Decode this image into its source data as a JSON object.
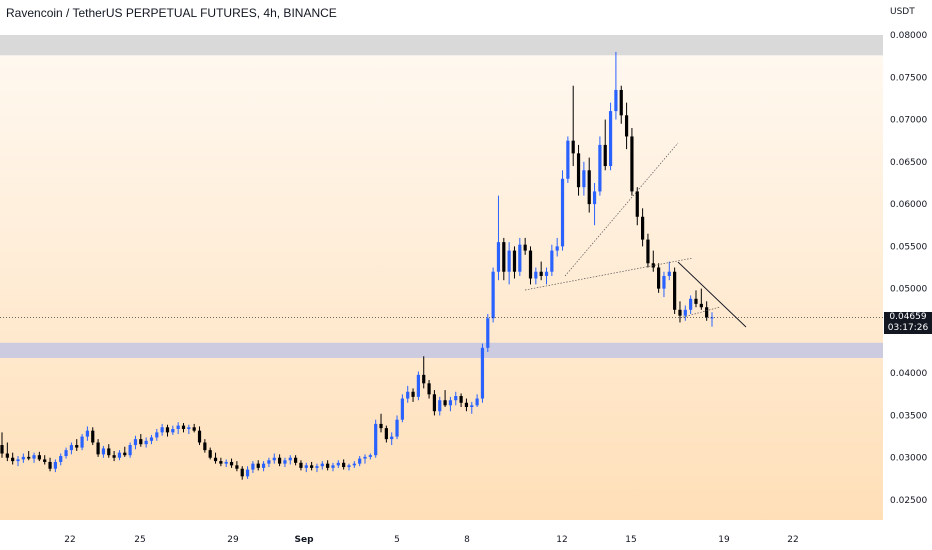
{
  "title": "Ravencoin / TetherUS PERPETUAL FUTURES, 4h, BINANCE",
  "currency": "USDT",
  "current_price": "0.04659",
  "countdown": "03:17:26",
  "colors": {
    "up": "#2962ff",
    "down": "#000000",
    "zone_top": "#d9d9d9",
    "zone_mid": "#cdcbe0",
    "grad_top": "#fff9f2",
    "grad_bottom": "#ffdfb8"
  },
  "chart_data": {
    "type": "candlestick",
    "title": "Ravencoin / TetherUS PERPETUAL FUTURES, 4h, BINANCE",
    "ylabel": "USDT",
    "ylim": [
      0.0218,
      0.0822
    ],
    "y_ticks": [
      "0.08000",
      "0.07500",
      "0.07000",
      "0.06500",
      "0.06000",
      "0.05500",
      "0.05000",
      "0.04500",
      "0.04000",
      "0.03500",
      "0.03000",
      "0.02500"
    ],
    "x_ticks": [
      "22",
      "25",
      "29",
      "Sep",
      "5",
      "8",
      "12",
      "15",
      "19",
      "22"
    ],
    "zones": [
      {
        "from": 0.0776,
        "to": 0.08
      },
      {
        "from": 0.0418,
        "to": 0.0436
      }
    ],
    "ohlc": [
      [
        0.0315,
        0.033,
        0.03,
        0.0305
      ],
      [
        0.0305,
        0.0318,
        0.0296,
        0.03
      ],
      [
        0.03,
        0.0306,
        0.0292,
        0.0296
      ],
      [
        0.0296,
        0.0302,
        0.029,
        0.0298
      ],
      [
        0.0298,
        0.0305,
        0.0294,
        0.0301
      ],
      [
        0.0301,
        0.0308,
        0.0297,
        0.0299
      ],
      [
        0.0299,
        0.0306,
        0.0294,
        0.0303
      ],
      [
        0.0303,
        0.0307,
        0.0296,
        0.0298
      ],
      [
        0.0298,
        0.0303,
        0.0292,
        0.0295
      ],
      [
        0.0295,
        0.03,
        0.0284,
        0.0287
      ],
      [
        0.0287,
        0.0298,
        0.0283,
        0.0295
      ],
      [
        0.0295,
        0.0305,
        0.0291,
        0.0302
      ],
      [
        0.0302,
        0.0312,
        0.0299,
        0.0309
      ],
      [
        0.0309,
        0.0318,
        0.0304,
        0.0315
      ],
      [
        0.0315,
        0.0322,
        0.0308,
        0.0312
      ],
      [
        0.0312,
        0.0328,
        0.0309,
        0.0325
      ],
      [
        0.0325,
        0.0337,
        0.032,
        0.0332
      ],
      [
        0.0332,
        0.0336,
        0.0315,
        0.0318
      ],
      [
        0.0318,
        0.0322,
        0.0301,
        0.0304
      ],
      [
        0.0304,
        0.0314,
        0.03,
        0.0311
      ],
      [
        0.0311,
        0.0316,
        0.03,
        0.0303
      ],
      [
        0.0303,
        0.0308,
        0.0296,
        0.03
      ],
      [
        0.03,
        0.0309,
        0.0297,
        0.0306
      ],
      [
        0.0306,
        0.0313,
        0.0301,
        0.0303
      ],
      [
        0.0303,
        0.0318,
        0.03,
        0.0315
      ],
      [
        0.0315,
        0.0326,
        0.031,
        0.0322
      ],
      [
        0.0322,
        0.0328,
        0.0313,
        0.0316
      ],
      [
        0.0316,
        0.0324,
        0.0312,
        0.032
      ],
      [
        0.032,
        0.0327,
        0.0316,
        0.0324
      ],
      [
        0.0324,
        0.0334,
        0.032,
        0.033
      ],
      [
        0.033,
        0.034,
        0.0326,
        0.0336
      ],
      [
        0.0336,
        0.0339,
        0.0325,
        0.033
      ],
      [
        0.033,
        0.0338,
        0.0327,
        0.0334
      ],
      [
        0.0334,
        0.0342,
        0.0328,
        0.0338
      ],
      [
        0.0338,
        0.0341,
        0.033,
        0.0334
      ],
      [
        0.0334,
        0.0339,
        0.0328,
        0.0336
      ],
      [
        0.0336,
        0.034,
        0.033,
        0.0332
      ],
      [
        0.0332,
        0.0337,
        0.0315,
        0.0318
      ],
      [
        0.0318,
        0.0322,
        0.0306,
        0.0309
      ],
      [
        0.0309,
        0.0312,
        0.0298,
        0.03
      ],
      [
        0.03,
        0.0306,
        0.0293,
        0.0296
      ],
      [
        0.0296,
        0.03,
        0.029,
        0.0293
      ],
      [
        0.0293,
        0.0298,
        0.0289,
        0.0295
      ],
      [
        0.0295,
        0.0299,
        0.0288,
        0.0291
      ],
      [
        0.0291,
        0.0296,
        0.0284,
        0.0287
      ],
      [
        0.0287,
        0.029,
        0.0274,
        0.0278
      ],
      [
        0.0278,
        0.029,
        0.0275,
        0.0286
      ],
      [
        0.0286,
        0.0296,
        0.0282,
        0.0293
      ],
      [
        0.0293,
        0.0297,
        0.0285,
        0.0288
      ],
      [
        0.0288,
        0.0296,
        0.0284,
        0.0293
      ],
      [
        0.0293,
        0.03,
        0.0289,
        0.0297
      ],
      [
        0.0297,
        0.0305,
        0.0293,
        0.03
      ],
      [
        0.03,
        0.0304,
        0.029,
        0.0293
      ],
      [
        0.0293,
        0.03,
        0.0289,
        0.0297
      ],
      [
        0.0297,
        0.0303,
        0.0292,
        0.03
      ],
      [
        0.03,
        0.0303,
        0.0291,
        0.0294
      ],
      [
        0.0294,
        0.0297,
        0.0285,
        0.0288
      ],
      [
        0.0288,
        0.0294,
        0.0283,
        0.0291
      ],
      [
        0.0291,
        0.0295,
        0.0285,
        0.0288
      ],
      [
        0.0288,
        0.0293,
        0.0283,
        0.029
      ],
      [
        0.029,
        0.0296,
        0.0286,
        0.0293
      ],
      [
        0.0293,
        0.0297,
        0.0285,
        0.0288
      ],
      [
        0.0288,
        0.0294,
        0.0284,
        0.0291
      ],
      [
        0.0291,
        0.0297,
        0.0288,
        0.0294
      ],
      [
        0.0294,
        0.0298,
        0.0286,
        0.0289
      ],
      [
        0.0289,
        0.0293,
        0.0285,
        0.0291
      ],
      [
        0.0291,
        0.0296,
        0.0288,
        0.0293
      ],
      [
        0.0293,
        0.0302,
        0.029,
        0.0299
      ],
      [
        0.0299,
        0.0304,
        0.0293,
        0.0301
      ],
      [
        0.0301,
        0.0305,
        0.0298,
        0.0303
      ],
      [
        0.0303,
        0.0345,
        0.03,
        0.034
      ],
      [
        0.034,
        0.0352,
        0.033,
        0.0335
      ],
      [
        0.0335,
        0.0338,
        0.0318,
        0.0322
      ],
      [
        0.0322,
        0.033,
        0.0315,
        0.0325
      ],
      [
        0.0325,
        0.035,
        0.0322,
        0.0345
      ],
      [
        0.0345,
        0.0375,
        0.0342,
        0.037
      ],
      [
        0.037,
        0.0385,
        0.0365,
        0.0378
      ],
      [
        0.0378,
        0.0382,
        0.0366,
        0.0372
      ],
      [
        0.0372,
        0.0402,
        0.0368,
        0.0398
      ],
      [
        0.0398,
        0.042,
        0.0382,
        0.0388
      ],
      [
        0.0388,
        0.0392,
        0.037,
        0.0375
      ],
      [
        0.0375,
        0.038,
        0.035,
        0.0355
      ],
      [
        0.0355,
        0.0372,
        0.035,
        0.0368
      ],
      [
        0.0368,
        0.038,
        0.036,
        0.0362
      ],
      [
        0.0362,
        0.0372,
        0.0355,
        0.0368
      ],
      [
        0.0368,
        0.0378,
        0.0362,
        0.0373
      ],
      [
        0.0373,
        0.0376,
        0.036,
        0.0365
      ],
      [
        0.0365,
        0.037,
        0.0355,
        0.036
      ],
      [
        0.036,
        0.0366,
        0.0352,
        0.0362
      ],
      [
        0.0362,
        0.0375,
        0.036,
        0.037
      ],
      [
        0.037,
        0.0435,
        0.0365,
        0.043
      ],
      [
        0.043,
        0.047,
        0.0425,
        0.0465
      ],
      [
        0.0465,
        0.0525,
        0.046,
        0.052
      ],
      [
        0.052,
        0.061,
        0.051,
        0.0555
      ],
      [
        0.0555,
        0.056,
        0.051,
        0.052
      ],
      [
        0.052,
        0.0555,
        0.0505,
        0.0545
      ],
      [
        0.0545,
        0.055,
        0.0512,
        0.052
      ],
      [
        0.052,
        0.056,
        0.0515,
        0.0552
      ],
      [
        0.0552,
        0.056,
        0.054,
        0.0545
      ],
      [
        0.0545,
        0.055,
        0.0505,
        0.0512
      ],
      [
        0.0512,
        0.0525,
        0.0505,
        0.052
      ],
      [
        0.052,
        0.0532,
        0.051,
        0.0515
      ],
      [
        0.0515,
        0.0525,
        0.0505,
        0.052
      ],
      [
        0.052,
        0.0552,
        0.0515,
        0.0545
      ],
      [
        0.0545,
        0.056,
        0.0538,
        0.055
      ],
      [
        0.055,
        0.064,
        0.0545,
        0.063
      ],
      [
        0.063,
        0.068,
        0.0625,
        0.0675
      ],
      [
        0.0675,
        0.074,
        0.0645,
        0.066
      ],
      [
        0.066,
        0.067,
        0.061,
        0.062
      ],
      [
        0.062,
        0.065,
        0.061,
        0.064
      ],
      [
        0.064,
        0.0655,
        0.059,
        0.06
      ],
      [
        0.06,
        0.0625,
        0.0575,
        0.0615
      ],
      [
        0.0615,
        0.068,
        0.061,
        0.067
      ],
      [
        0.067,
        0.07,
        0.064,
        0.0645
      ],
      [
        0.0645,
        0.072,
        0.064,
        0.071
      ],
      [
        0.071,
        0.078,
        0.07,
        0.0735
      ],
      [
        0.0735,
        0.074,
        0.0695,
        0.0705
      ],
      [
        0.0705,
        0.072,
        0.0665,
        0.068
      ],
      [
        0.068,
        0.069,
        0.061,
        0.0615
      ],
      [
        0.0615,
        0.062,
        0.0575,
        0.0585
      ],
      [
        0.0585,
        0.0595,
        0.055,
        0.0558
      ],
      [
        0.0558,
        0.0565,
        0.0525,
        0.053
      ],
      [
        0.053,
        0.0545,
        0.052,
        0.0525
      ],
      [
        0.0525,
        0.053,
        0.0495,
        0.05
      ],
      [
        0.05,
        0.052,
        0.049,
        0.0515
      ],
      [
        0.0515,
        0.0532,
        0.051,
        0.052
      ],
      [
        0.052,
        0.0525,
        0.047,
        0.0475
      ],
      [
        0.0475,
        0.0485,
        0.046,
        0.0468
      ],
      [
        0.0468,
        0.048,
        0.0462,
        0.0475
      ],
      [
        0.0475,
        0.0492,
        0.047,
        0.0488
      ],
      [
        0.0488,
        0.0498,
        0.0478,
        0.0482
      ],
      [
        0.0482,
        0.05,
        0.0475,
        0.0478
      ],
      [
        0.0478,
        0.0485,
        0.0462,
        0.0466
      ],
      [
        0.0466,
        0.0472,
        0.0455,
        0.0466
      ]
    ]
  }
}
